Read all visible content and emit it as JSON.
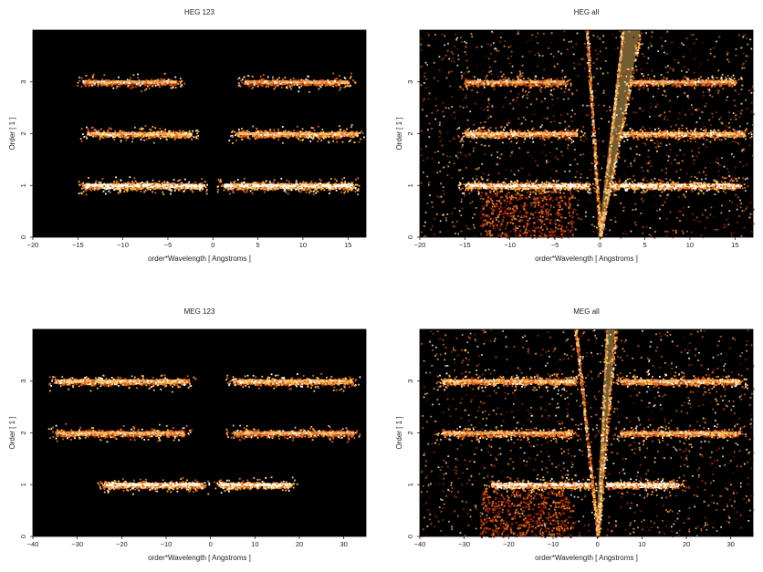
{
  "figure": {
    "background": "#ffffff",
    "plot_background": "#000000",
    "colormap": [
      "#000000",
      "#5a0600",
      "#a32a00",
      "#e0661a",
      "#ffc04d",
      "#ffffff"
    ]
  },
  "chart_data": [
    {
      "type": "heatmap",
      "title": "HEG 123",
      "xlabel": "order*Wavelength [ Angstroms ]",
      "ylabel": "Order [ 1 ]",
      "xlim": [
        -20,
        17
      ],
      "ylim": [
        0,
        4
      ],
      "xticks": [
        -20,
        -15,
        -10,
        -5,
        0,
        5,
        10,
        15
      ],
      "yticks": [
        0,
        1,
        2,
        3
      ],
      "grid": false,
      "bands": [
        {
          "order": 1,
          "x_ranges": [
            [
              -14.5,
              -1.2
            ],
            [
              1.2,
              15.5
            ]
          ],
          "intensity": 1.0
        },
        {
          "order": 2,
          "x_ranges": [
            [
              -14.0,
              -2.5
            ],
            [
              2.5,
              16.0
            ]
          ],
          "intensity": 0.85
        },
        {
          "order": 3,
          "x_ranges": [
            [
              -14.5,
              -4.0
            ],
            [
              3.5,
              15.0
            ]
          ],
          "intensity": 0.7
        }
      ],
      "leakage": false
    },
    {
      "type": "heatmap",
      "title": "HEG all",
      "xlabel": "order*Wavelength [ Angstroms ]",
      "ylabel": "Order [ 1 ]",
      "xlim": [
        -20,
        17
      ],
      "ylim": [
        0,
        4
      ],
      "xticks": [
        -20,
        -15,
        -10,
        -5,
        0,
        5,
        10,
        15
      ],
      "yticks": [
        0,
        1,
        2,
        3
      ],
      "grid": false,
      "bands": [
        {
          "order": 1,
          "x_ranges": [
            [
              -15.0,
              -1.2
            ],
            [
              1.2,
              15.5
            ]
          ],
          "intensity": 1.0
        },
        {
          "order": 2,
          "x_ranges": [
            [
              -15.0,
              -2.5
            ],
            [
              2.5,
              16.0
            ]
          ],
          "intensity": 0.85
        },
        {
          "order": 3,
          "x_ranges": [
            [
              -15.0,
              -4.0
            ],
            [
              3.5,
              15.0
            ]
          ],
          "intensity": 0.7
        }
      ],
      "leakage": true
    },
    {
      "type": "heatmap",
      "title": "MEG 123",
      "xlabel": "order*Wavelength [ Angstroms ]",
      "ylabel": "Order [ 1 ]",
      "xlim": [
        -40,
        35
      ],
      "ylim": [
        0,
        4
      ],
      "xticks": [
        -40,
        -30,
        -20,
        -10,
        0,
        10,
        20,
        30
      ],
      "yticks": [
        0,
        1,
        2,
        3
      ],
      "grid": false,
      "bands": [
        {
          "order": 1,
          "x_ranges": [
            [
              -24.0,
              -2.0
            ],
            [
              2.0,
              18.0
            ]
          ],
          "intensity": 1.0
        },
        {
          "order": 2,
          "x_ranges": [
            [
              -35.0,
              -6.0
            ],
            [
              5.0,
              32.0
            ]
          ],
          "intensity": 0.75
        },
        {
          "order": 3,
          "x_ranges": [
            [
              -35.0,
              -5.0
            ],
            [
              5.0,
              32.0
            ]
          ],
          "intensity": 0.85
        }
      ],
      "leakage": false
    },
    {
      "type": "heatmap",
      "title": "MEG all",
      "xlabel": "order*Wavelength [ Angstroms ]",
      "ylabel": "Order [ 1 ]",
      "xlim": [
        -40,
        35
      ],
      "ylim": [
        0,
        4
      ],
      "xticks": [
        -40,
        -30,
        -20,
        -10,
        0,
        10,
        20,
        30
      ],
      "yticks": [
        0,
        1,
        2,
        3
      ],
      "grid": false,
      "bands": [
        {
          "order": 1,
          "x_ranges": [
            [
              -24.0,
              -2.0
            ],
            [
              2.0,
              18.0
            ]
          ],
          "intensity": 1.0
        },
        {
          "order": 2,
          "x_ranges": [
            [
              -35.0,
              -6.0
            ],
            [
              5.0,
              32.0
            ]
          ],
          "intensity": 0.75
        },
        {
          "order": 3,
          "x_ranges": [
            [
              -35.0,
              -5.0
            ],
            [
              5.0,
              32.0
            ]
          ],
          "intensity": 0.85
        }
      ],
      "leakage": true
    }
  ]
}
